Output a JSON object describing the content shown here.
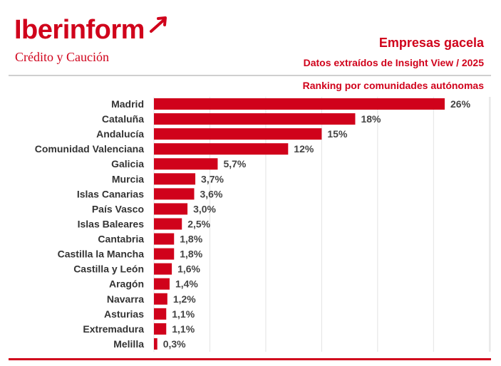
{
  "brand": {
    "name": "Iberinform",
    "tagline": "Crédito y Caución",
    "color": "#d0021b"
  },
  "header": {
    "title": "Empresas gacela",
    "subtitle": "Datos extraídos de Insight View / 2025",
    "ranking": "Ranking por comunidades autónomas"
  },
  "chart_data": {
    "type": "bar",
    "orientation": "horizontal",
    "title": "Ranking por comunidades autónomas",
    "categories": [
      "Madrid",
      "Cataluña",
      "Andalucía",
      "Comunidad Valenciana",
      "Galicia",
      "Murcia",
      "Islas Canarias",
      "País Vasco",
      "Islas Baleares",
      "Cantabria",
      "Castilla la Mancha",
      "Castilla y León",
      "Aragón",
      "Navarra",
      "Asturias",
      "Extremadura",
      "Melilla"
    ],
    "values": [
      26,
      18,
      15,
      12,
      5.7,
      3.7,
      3.6,
      3.0,
      2.5,
      1.8,
      1.8,
      1.6,
      1.4,
      1.2,
      1.1,
      1.1,
      0.3
    ],
    "labels": [
      "26%",
      "18%",
      "15%",
      "12%",
      "5,7%",
      "3,7%",
      "3,6%",
      "3,0%",
      "2,5%",
      "1,8%",
      "1,8%",
      "1,6%",
      "1,4%",
      "1,2%",
      "1,1%",
      "1,1%",
      "0,3%"
    ],
    "xlim": [
      0,
      30
    ],
    "unit": "%",
    "grid": "vertical",
    "bar_color": "#d0021b"
  }
}
